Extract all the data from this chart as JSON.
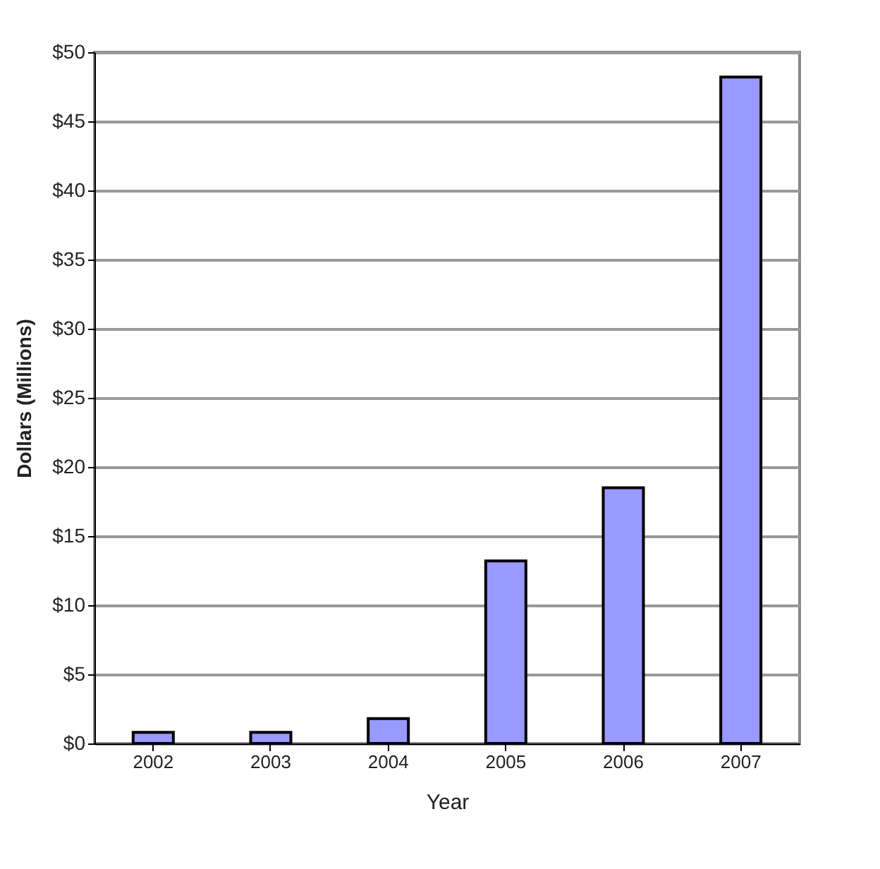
{
  "chart_data": {
    "type": "bar",
    "xlabel": "Year",
    "ylabel": "Dollars (Millions)",
    "categories": [
      "2002",
      "2003",
      "2004",
      "2005",
      "2006",
      "2007"
    ],
    "values": [
      0.8,
      0.8,
      1.8,
      13.2,
      18.5,
      48.2
    ],
    "color": "#9999ff",
    "ylim": [
      0,
      50
    ],
    "yticks": [
      {
        "value": 0,
        "label": "$0"
      },
      {
        "value": 5,
        "label": "$5"
      },
      {
        "value": 10,
        "label": "$10"
      },
      {
        "value": 15,
        "label": "$15"
      },
      {
        "value": 20,
        "label": "$20"
      },
      {
        "value": 25,
        "label": "$25"
      },
      {
        "value": 30,
        "label": "$30"
      },
      {
        "value": 35,
        "label": "$35"
      },
      {
        "value": 40,
        "label": "$40"
      },
      {
        "value": 45,
        "label": "$45"
      },
      {
        "value": 50,
        "label": "$50"
      }
    ],
    "grid": "y"
  }
}
